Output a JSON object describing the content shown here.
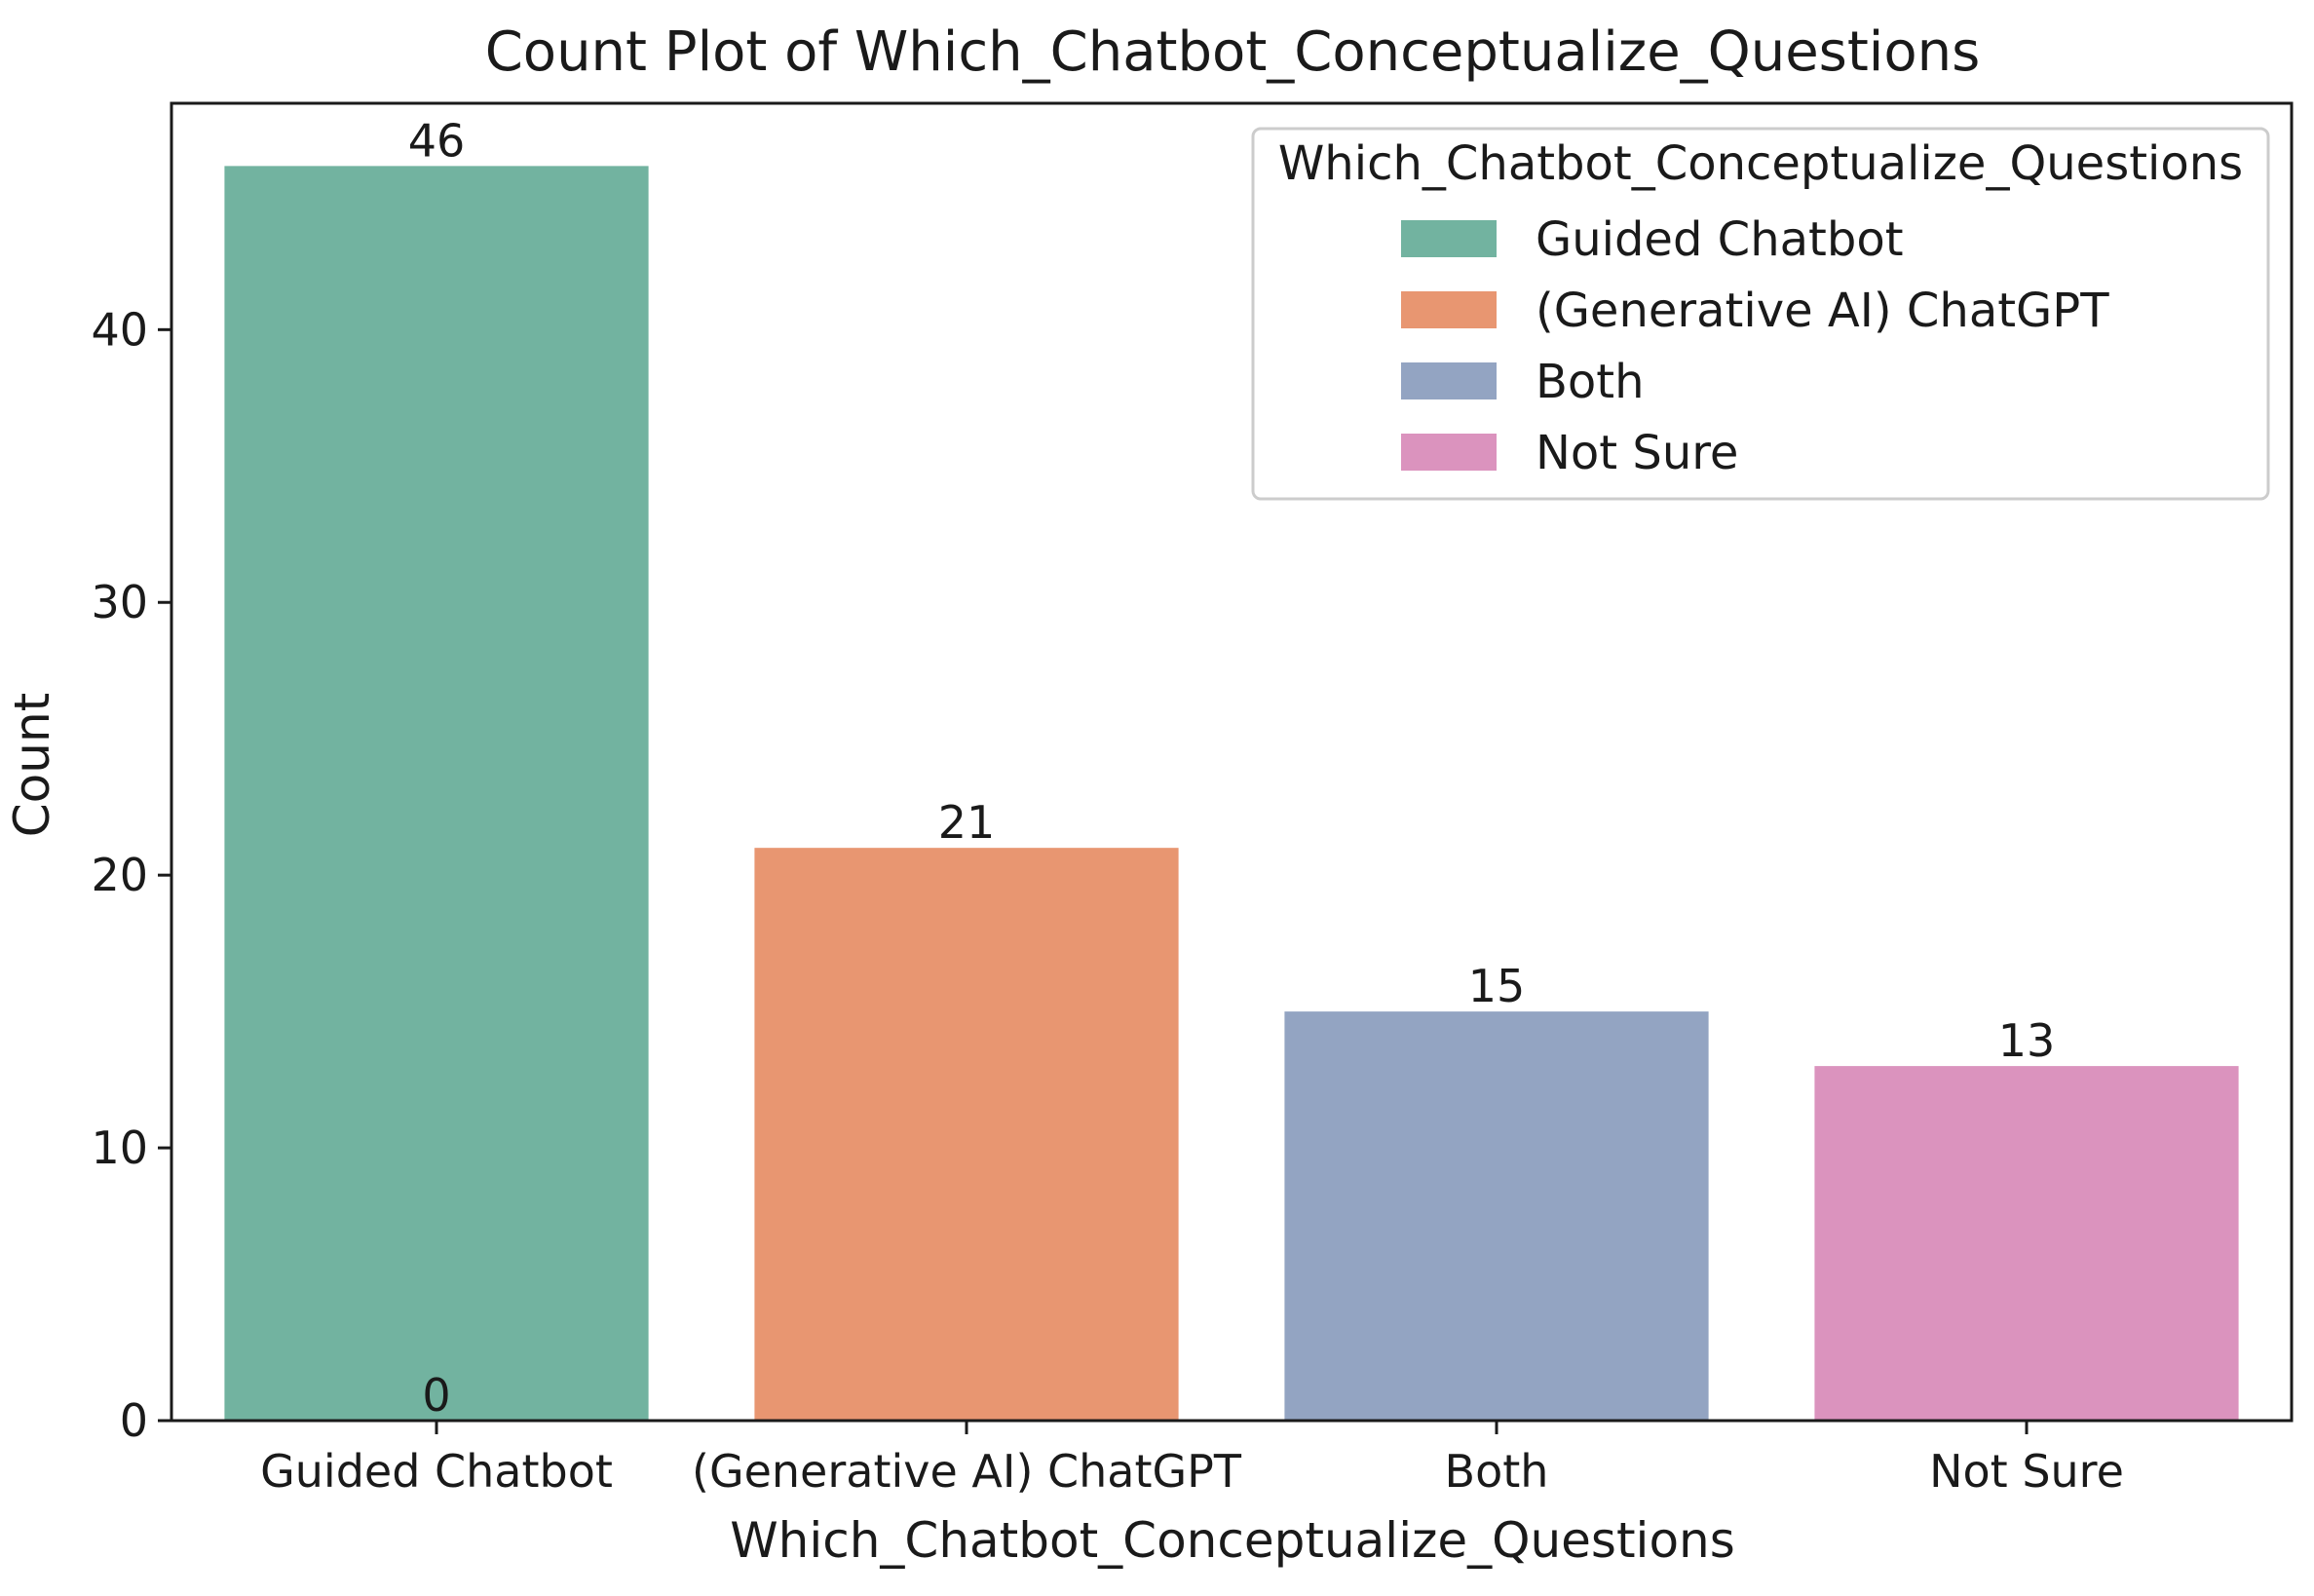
{
  "chart_data": {
    "type": "bar",
    "title": "Count Plot of Which_Chatbot_Conceptualize_Questions",
    "xlabel": "Which_Chatbot_Conceptualize_Questions",
    "ylabel": "Count",
    "categories": [
      "Guided Chatbot",
      "(Generative AI) ChatGPT",
      "Both",
      "Not Sure"
    ],
    "values": [
      46,
      21,
      15,
      13
    ],
    "data_labels": [
      "46",
      "21",
      "15",
      "13"
    ],
    "extra_annotation": "0",
    "colors": [
      "#72b3a0",
      "#e89671",
      "#93a4c2",
      "#db93be"
    ],
    "ylim": [
      0,
      48.3
    ],
    "yticks": [
      0,
      10,
      20,
      30,
      40
    ],
    "grid": false,
    "legend": {
      "title": "Which_Chatbot_Conceptualize_Questions",
      "placement": "top-right",
      "entries": [
        "Guided Chatbot",
        "(Generative AI) ChatGPT",
        "Both",
        "Not Sure"
      ]
    }
  }
}
